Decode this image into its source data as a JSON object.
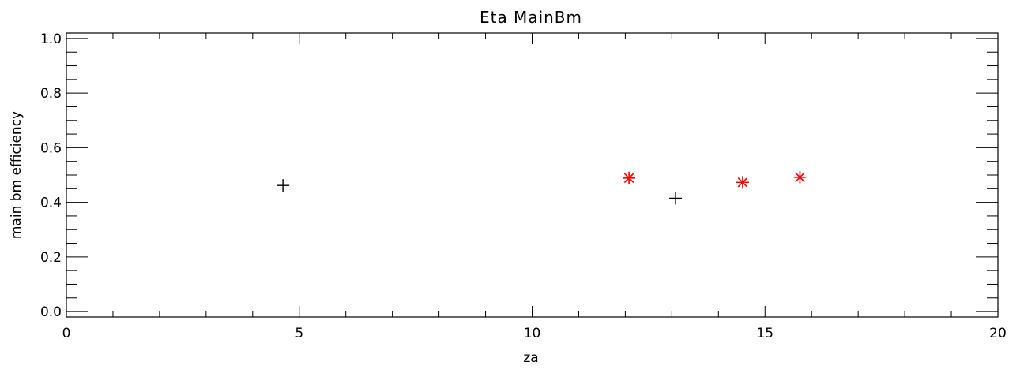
{
  "chart_data": {
    "type": "scatter",
    "title": "Eta MainBm",
    "xlabel": "za",
    "ylabel": "main bm efficiency",
    "xlim": [
      0,
      20
    ],
    "ylim": [
      -0.02,
      1.02
    ],
    "x_ticks": [
      0,
      5,
      10,
      15,
      20
    ],
    "x_tick_labels": [
      "0",
      "5",
      "10",
      "15",
      "20"
    ],
    "x_minor_step": 1,
    "y_ticks": [
      0.0,
      0.2,
      0.4,
      0.6,
      0.8,
      1.0
    ],
    "y_tick_labels": [
      "0.0",
      "0.2",
      "0.4",
      "0.6",
      "0.8",
      "1.0"
    ],
    "y_minor_step": 0.05,
    "grid": false,
    "legend": "none",
    "series": [
      {
        "marker": "plus",
        "color": "#000000",
        "points": [
          {
            "x": 4.65,
            "y": 0.462
          },
          {
            "x": 13.08,
            "y": 0.415
          }
        ]
      },
      {
        "marker": "asterisk",
        "color": "#ff0000",
        "points": [
          {
            "x": 12.08,
            "y": 0.489
          },
          {
            "x": 14.52,
            "y": 0.473
          },
          {
            "x": 15.75,
            "y": 0.492
          }
        ]
      }
    ]
  }
}
